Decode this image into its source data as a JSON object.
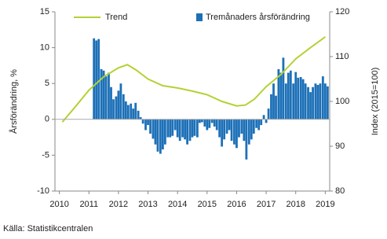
{
  "chart_data": {
    "type": "bar-line",
    "y_label": "Årsförändring, %",
    "y2_label": "Index (2015=100)",
    "source": "Källa: Statistikcentralen",
    "xlim": [
      2009.85,
      2019.15
    ],
    "xticks": [
      2010,
      2011,
      2012,
      2013,
      2014,
      2015,
      2016,
      2017,
      2018,
      2019
    ],
    "ylim": [
      -10,
      15
    ],
    "yticks": [
      -10,
      -5,
      0,
      5,
      10,
      15
    ],
    "y2lim": [
      80,
      120
    ],
    "y2ticks": [
      80,
      90,
      100,
      110,
      120
    ],
    "series": [
      {
        "name": "Tremånaders årsförändring",
        "type": "bar",
        "color": "#1d70b7",
        "x": [
          2011.17,
          2011.25,
          2011.33,
          2011.42,
          2011.5,
          2011.58,
          2011.67,
          2011.75,
          2011.83,
          2011.92,
          2012.0,
          2012.08,
          2012.17,
          2012.25,
          2012.33,
          2012.42,
          2012.5,
          2012.58,
          2012.67,
          2012.75,
          2012.83,
          2012.92,
          2013.0,
          2013.08,
          2013.17,
          2013.25,
          2013.33,
          2013.42,
          2013.5,
          2013.58,
          2013.67,
          2013.75,
          2013.83,
          2013.92,
          2014.0,
          2014.08,
          2014.17,
          2014.25,
          2014.33,
          2014.42,
          2014.5,
          2014.58,
          2014.67,
          2014.75,
          2014.83,
          2014.92,
          2015.0,
          2015.08,
          2015.17,
          2015.25,
          2015.33,
          2015.42,
          2015.5,
          2015.58,
          2015.67,
          2015.75,
          2015.83,
          2015.92,
          2016.0,
          2016.08,
          2016.17,
          2016.25,
          2016.33,
          2016.42,
          2016.5,
          2016.58,
          2016.67,
          2016.75,
          2016.83,
          2016.92,
          2017.0,
          2017.08,
          2017.17,
          2017.25,
          2017.33,
          2017.42,
          2017.5,
          2017.58,
          2017.67,
          2017.75,
          2017.83,
          2017.92,
          2018.0,
          2018.08,
          2018.17,
          2018.25,
          2018.33,
          2018.42,
          2018.5,
          2018.58,
          2018.67,
          2018.75,
          2018.83,
          2018.92,
          2019.0,
          2019.08
        ],
        "values": [
          11.3,
          11.0,
          11.2,
          7.0,
          6.8,
          6.0,
          6.5,
          4.5,
          2.8,
          3.2,
          4.0,
          5.0,
          3.5,
          2.5,
          2.0,
          2.2,
          1.5,
          2.3,
          1.2,
          0.3,
          -0.6,
          -1.5,
          -0.8,
          -2.0,
          -2.7,
          -3.5,
          -4.5,
          -4.8,
          -4.2,
          -3.5,
          -2.5,
          -2.5,
          -2.3,
          -1.5,
          -2.5,
          -3.0,
          -2.5,
          -2.8,
          -3.5,
          -3.0,
          -2.5,
          -2.3,
          -2.5,
          -0.5,
          -0.4,
          -1.0,
          -1.5,
          -1.2,
          -0.5,
          -1.0,
          -1.5,
          -2.5,
          -3.8,
          -2.8,
          -2.0,
          -1.5,
          -3.0,
          -3.5,
          -4.0,
          -2.5,
          -2.0,
          -3.0,
          -5.6,
          -3.5,
          -2.8,
          -2.0,
          -1.2,
          -1.5,
          -0.8,
          0.6,
          -0.5,
          1.5,
          3.5,
          5.0,
          3.3,
          7.0,
          6.5,
          8.6,
          5.0,
          6.5,
          6.8,
          5.0,
          6.6,
          5.8,
          5.9,
          5.6,
          5.0,
          4.5,
          3.8,
          4.5,
          5.0,
          4.8,
          5.0,
          6.0,
          5.0,
          4.6
        ]
      },
      {
        "name": "Trend",
        "type": "line",
        "axis": "y2",
        "color": "#b3d235",
        "x": [
          2010.1,
          2010.5,
          2011.0,
          2011.5,
          2012.0,
          2012.3,
          2012.6,
          2013.0,
          2013.5,
          2014.0,
          2014.5,
          2015.0,
          2015.5,
          2016.0,
          2016.3,
          2016.6,
          2017.0,
          2017.5,
          2018.0,
          2018.5,
          2019.0
        ],
        "values": [
          95.4,
          98.5,
          102.5,
          105.5,
          107.5,
          108.2,
          107.0,
          105.0,
          103.5,
          103.0,
          102.3,
          101.5,
          100.0,
          99.0,
          99.2,
          100.5,
          103.3,
          106.0,
          109.5,
          112.0,
          114.4
        ]
      }
    ],
    "legend": "top"
  }
}
